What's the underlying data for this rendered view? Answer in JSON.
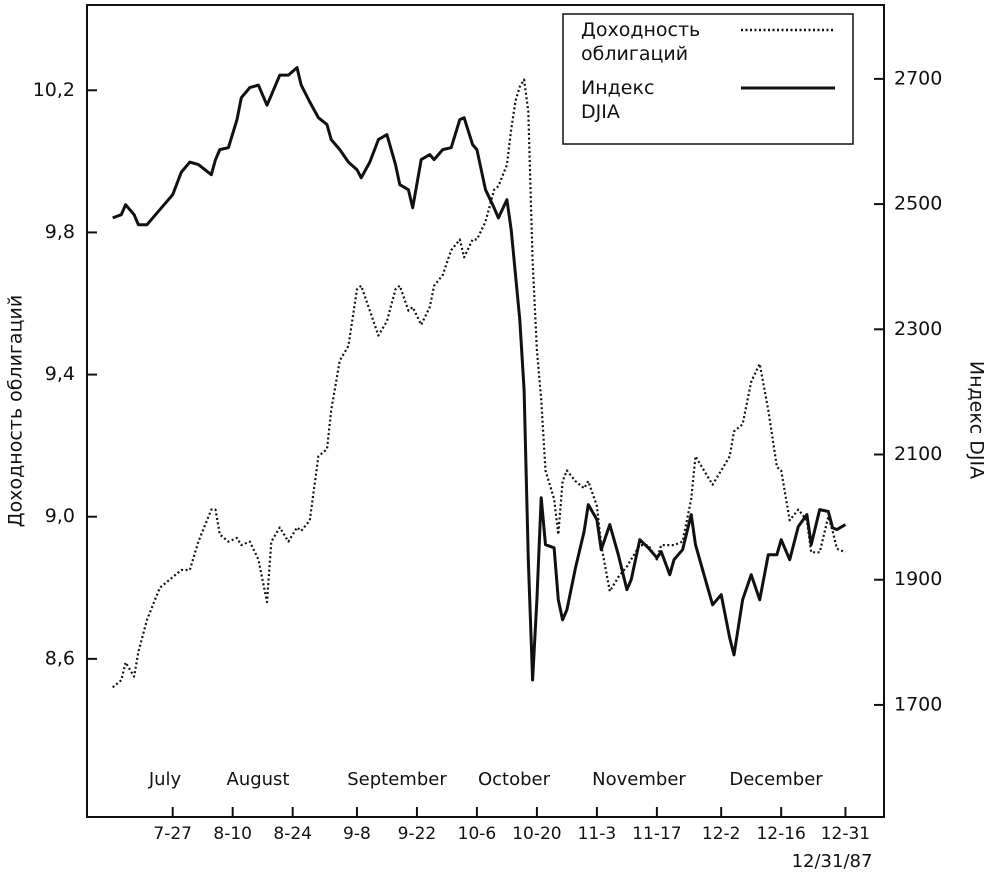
{
  "chart_data": {
    "type": "line",
    "y_label": "Доходность облигаций",
    "y2_label": "Индекс DJIA",
    "annotations": [
      "July",
      "August",
      "September",
      "October",
      "November",
      "December",
      "12/31/87"
    ],
    "x": [
      "7-13",
      "7-15",
      "7-16",
      "7-18",
      "7-19",
      "7-21",
      "7-24",
      "7-27",
      "7-29",
      "7-31",
      "8-2",
      "8-5",
      "8-6",
      "8-7",
      "8-9",
      "8-11",
      "8-12",
      "8-14",
      "8-16",
      "8-18",
      "8-19",
      "8-21",
      "8-23",
      "8-25",
      "8-26",
      "8-28",
      "8-30",
      "9-1",
      "9-2",
      "9-4",
      "9-6",
      "9-8",
      "9-9",
      "9-11",
      "9-13",
      "9-15",
      "9-17",
      "9-18",
      "9-20",
      "9-21",
      "9-23",
      "9-25",
      "9-26",
      "9-28",
      "9-30",
      "10-2",
      "10-3",
      "10-5",
      "10-6",
      "10-8",
      "10-10",
      "10-11",
      "10-13",
      "10-14",
      "10-15",
      "10-16",
      "10-17",
      "10-18",
      "10-19",
      "10-20",
      "10-21",
      "10-22",
      "10-24",
      "10-25",
      "10-26",
      "10-27",
      "10-29",
      "10-31",
      "11-1",
      "11-3",
      "11-4",
      "11-6",
      "11-8",
      "11-10",
      "11-11",
      "11-13",
      "11-15",
      "11-17",
      "11-18",
      "11-20",
      "11-21",
      "11-23",
      "11-25",
      "11-26",
      "11-28",
      "11-30",
      "12-2",
      "12-4",
      "12-5",
      "12-7",
      "12-9",
      "12-11",
      "12-13",
      "12-15",
      "12-16",
      "12-18",
      "12-20",
      "12-22",
      "12-23",
      "12-25",
      "12-27",
      "12-28",
      "12-29",
      "12-31"
    ],
    "series": [
      {
        "name": "Доходность облигаций",
        "color": "#111111",
        "dash": "dotted",
        "values": [
          8.52,
          8.54,
          8.59,
          8.55,
          8.62,
          8.71,
          8.8,
          8.83,
          8.85,
          8.85,
          8.93,
          9.02,
          9.02,
          8.95,
          8.93,
          8.94,
          8.92,
          8.93,
          8.88,
          8.76,
          8.93,
          8.97,
          8.93,
          8.97,
          8.96,
          8.99,
          9.17,
          9.19,
          9.3,
          9.44,
          9.48,
          9.64,
          9.65,
          9.58,
          9.51,
          9.55,
          9.64,
          9.65,
          9.58,
          9.59,
          9.54,
          9.59,
          9.65,
          9.68,
          9.75,
          9.78,
          9.73,
          9.78,
          9.78,
          9.83,
          9.92,
          9.93,
          9.99,
          10.09,
          10.17,
          10.21,
          10.23,
          10.14,
          9.72,
          9.47,
          9.33,
          9.13,
          9.05,
          8.95,
          9.1,
          9.13,
          9.1,
          9.08,
          9.1,
          9.03,
          8.92,
          8.79,
          8.83,
          8.86,
          8.88,
          8.92,
          8.92,
          8.88,
          8.92,
          8.92,
          8.92,
          8.93,
          9.05,
          9.17,
          9.13,
          9.09,
          9.13,
          9.17,
          9.24,
          9.26,
          9.38,
          9.43,
          9.3,
          9.14,
          9.13,
          8.99,
          9.02,
          8.99,
          8.9,
          8.9,
          9.0,
          8.96,
          8.91,
          8.9
        ]
      },
      {
        "name": "Индекс DJIA",
        "color": "#111111",
        "dash": "solid",
        "axis": "y2",
        "values": [
          2478,
          2483,
          2499,
          2483,
          2467,
          2467,
          2491,
          2515,
          2551,
          2567,
          2563,
          2547,
          2571,
          2587,
          2590,
          2635,
          2670,
          2686,
          2690,
          2658,
          2674,
          2706,
          2706,
          2718,
          2690,
          2663,
          2638,
          2627,
          2603,
          2587,
          2567,
          2555,
          2542,
          2567,
          2603,
          2611,
          2563,
          2531,
          2523,
          2494,
          2571,
          2579,
          2571,
          2587,
          2590,
          2635,
          2638,
          2595,
          2587,
          2523,
          2494,
          2478,
          2507,
          2459,
          2387,
          2315,
          2203,
          1932,
          1740,
          1868,
          2031,
          1956,
          1951,
          1868,
          1836,
          1852,
          1919,
          1977,
          2020,
          1996,
          1948,
          1988,
          1940,
          1884,
          1900,
          1964,
          1951,
          1935,
          1945,
          1908,
          1932,
          1948,
          2004,
          1956,
          1908,
          1860,
          1876,
          1807,
          1780,
          1868,
          1908,
          1868,
          1940,
          1940,
          1964,
          1932,
          1985,
          2004,
          1956,
          2012,
          2009,
          1983,
          1980,
          1988
        ]
      }
    ],
    "xlim": [
      "7-7",
      "1-9"
    ],
    "xticks": [
      "7-27",
      "8-10",
      "8-24",
      "9-8",
      "9-22",
      "10-6",
      "10-20",
      "11-3",
      "11-17",
      "12-2",
      "12-16",
      "12-31"
    ],
    "ylim": [
      8.155,
      10.44
    ],
    "yticks": [
      {
        "value": 8.6,
        "label": "8,6"
      },
      {
        "value": 9.0,
        "label": "9,0"
      },
      {
        "value": 9.4,
        "label": "9,4"
      },
      {
        "value": 9.8,
        "label": "9,8"
      },
      {
        "value": 10.2,
        "label": "10,2"
      }
    ],
    "y2lim": [
      1521,
      2818
    ],
    "y2ticks": [
      1700,
      1900,
      2100,
      2300,
      2500,
      2700
    ],
    "legend": "upper right"
  }
}
